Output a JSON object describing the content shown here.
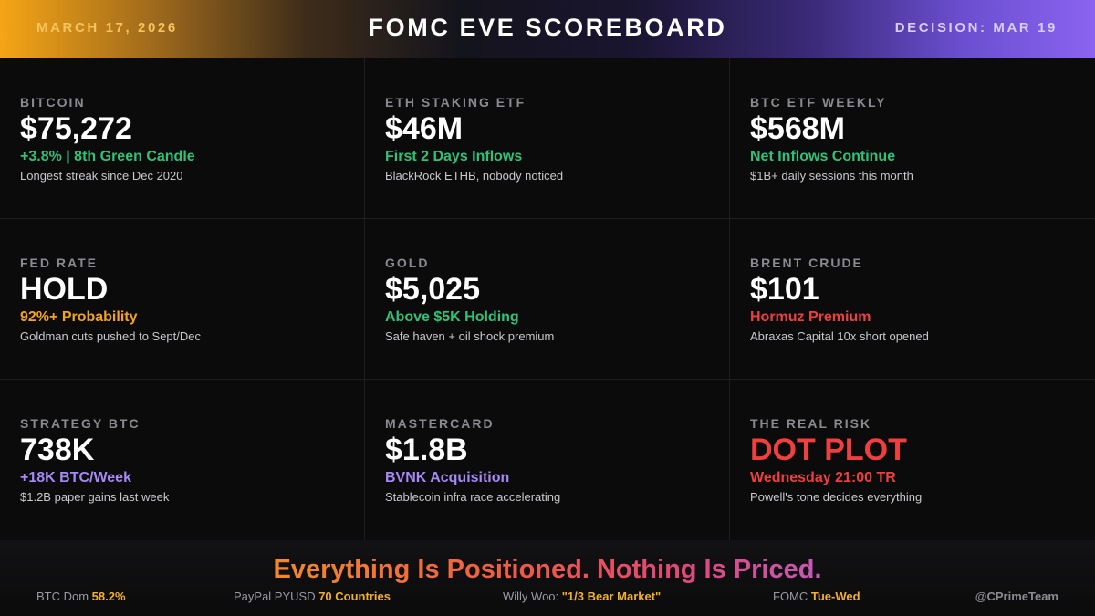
{
  "header": {
    "date": "MARCH 17, 2026",
    "title": "FOMC EVE SCOREBOARD",
    "decision": "DECISION: MAR 19"
  },
  "cards": [
    {
      "label": "BITCOIN",
      "value": "$75,272",
      "sub": "+3.8% | 8th Green Candle",
      "sub_color": "green",
      "note": "Longest streak since Dec 2020"
    },
    {
      "label": "ETH STAKING ETF",
      "value": "$46M",
      "sub": "First 2 Days Inflows",
      "sub_color": "green",
      "note": "BlackRock ETHB, nobody noticed"
    },
    {
      "label": "BTC ETF WEEKLY",
      "value": "$568M",
      "sub": "Net Inflows Continue",
      "sub_color": "green",
      "note": "$1B+ daily sessions this month"
    },
    {
      "label": "FED RATE",
      "value": "HOLD",
      "sub": "92%+ Probability",
      "sub_color": "orange",
      "note": "Goldman cuts pushed to Sept/Dec"
    },
    {
      "label": "GOLD",
      "value": "$5,025",
      "sub": "Above $5K Holding",
      "sub_color": "green",
      "note": "Safe haven + oil shock premium"
    },
    {
      "label": "BRENT CRUDE",
      "value": "$101",
      "sub": "Hormuz Premium",
      "sub_color": "red",
      "note": "Abraxas Capital 10x short opened"
    },
    {
      "label": "STRATEGY BTC",
      "value": "738K",
      "sub": "+18K BTC/Week",
      "sub_color": "purple",
      "note": "$1.2B paper gains last week"
    },
    {
      "label": "MASTERCARD",
      "value": "$1.8B",
      "sub": "BVNK Acquisition",
      "sub_color": "purple",
      "note": "Stablecoin infra race accelerating"
    },
    {
      "label": "THE REAL RISK",
      "value": "DOT PLOT",
      "value_color": "red",
      "sub": "Wednesday 21:00 TR",
      "sub_color": "red",
      "note": "Powell's tone decides everything"
    }
  ],
  "footer": {
    "tagline": "Everything Is Positioned. Nothing Is Priced.",
    "stats": [
      {
        "label": "BTC Dom ",
        "value": "58.2%"
      },
      {
        "label": "PayPal PYUSD ",
        "value": "70 Countries"
      },
      {
        "label": "Willy Woo: ",
        "value": "\"1/3 Bear Market\""
      },
      {
        "label": "FOMC ",
        "value": "Tue-Wed"
      }
    ],
    "handle": "@CPrimeTeam"
  },
  "colors": {
    "green": "#2fc27a",
    "orange": "#f3a41c",
    "red": "#ef3f3f",
    "purple": "#a589f5",
    "highlight": "#f3b02a"
  }
}
